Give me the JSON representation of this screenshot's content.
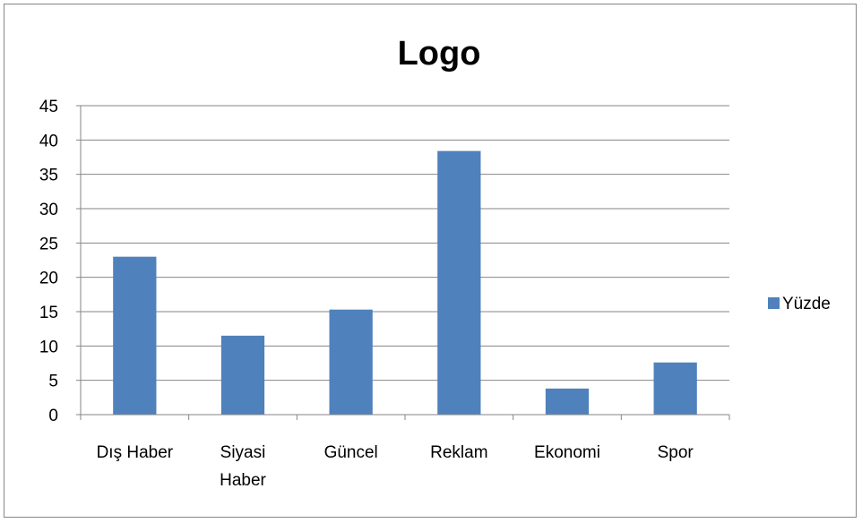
{
  "chart_data": {
    "type": "bar",
    "title": "Logo",
    "categories": [
      [
        "Dış Haber"
      ],
      [
        "Siyasi",
        "Haber"
      ],
      [
        "Güncel"
      ],
      [
        "Reklam"
      ],
      [
        "Ekonomi"
      ],
      [
        "Spor"
      ]
    ],
    "series": [
      {
        "name": "Yüzde",
        "values": [
          23.0,
          11.5,
          15.3,
          38.4,
          3.8,
          7.6
        ],
        "color": "#4f81bd"
      }
    ],
    "ylim": [
      0,
      45
    ],
    "yticks": [
      "0",
      "5",
      "10",
      "15",
      "20",
      "25",
      "30",
      "35",
      "40",
      "45"
    ],
    "grid": true,
    "legend": "right"
  }
}
